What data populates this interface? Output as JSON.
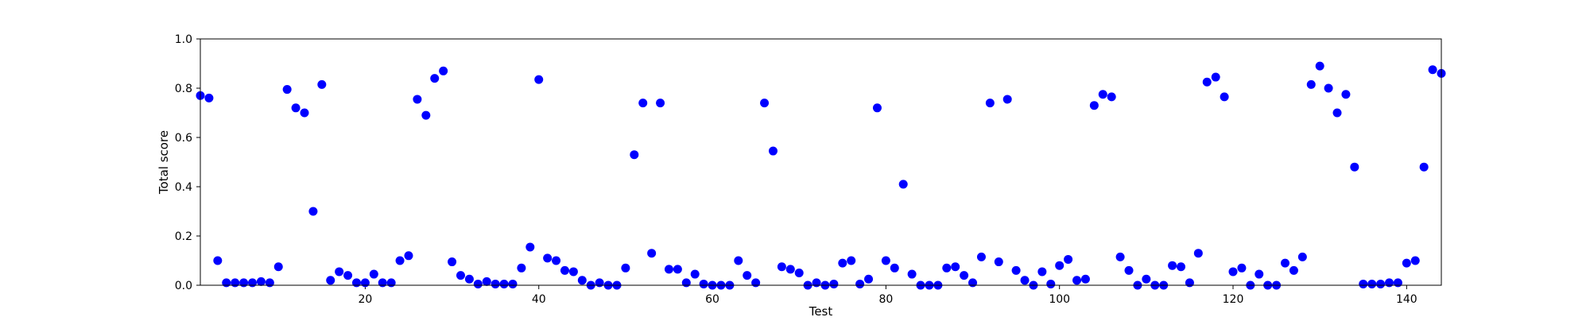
{
  "chart_data": {
    "type": "scatter",
    "xlabel": "Test",
    "ylabel": "Total score",
    "xlim": [
      1,
      144
    ],
    "ylim": [
      0,
      1
    ],
    "xticks": [
      20,
      40,
      60,
      80,
      100,
      120,
      140
    ],
    "yticks": [
      0.0,
      0.2,
      0.4,
      0.6,
      0.8,
      1.0
    ],
    "grid": false,
    "marker_color": "#0000ff",
    "x": [
      1,
      2,
      3,
      4,
      5,
      6,
      7,
      8,
      9,
      10,
      11,
      12,
      13,
      14,
      15,
      16,
      17,
      18,
      19,
      20,
      21,
      22,
      23,
      24,
      25,
      26,
      27,
      28,
      29,
      30,
      31,
      32,
      33,
      34,
      35,
      36,
      37,
      38,
      39,
      40,
      41,
      42,
      43,
      44,
      45,
      46,
      47,
      48,
      49,
      50,
      51,
      52,
      53,
      54,
      55,
      56,
      57,
      58,
      59,
      60,
      61,
      62,
      63,
      64,
      65,
      66,
      67,
      68,
      69,
      70,
      71,
      72,
      73,
      74,
      75,
      76,
      77,
      78,
      79,
      80,
      81,
      82,
      83,
      84,
      85,
      86,
      87,
      88,
      89,
      90,
      91,
      92,
      93,
      94,
      95,
      96,
      97,
      98,
      99,
      100,
      101,
      102,
      103,
      104,
      105,
      106,
      107,
      108,
      109,
      110,
      111,
      112,
      113,
      114,
      115,
      116,
      117,
      118,
      119,
      120,
      121,
      122,
      123,
      124,
      125,
      126,
      127,
      128,
      129,
      130,
      131,
      132,
      133,
      134,
      135,
      136,
      137,
      138,
      139,
      140,
      141,
      142,
      143,
      144
    ],
    "y": [
      0.77,
      0.76,
      0.1,
      0.01,
      0.01,
      0.01,
      0.01,
      0.015,
      0.01,
      0.075,
      0.795,
      0.72,
      0.7,
      0.3,
      0.815,
      0.02,
      0.055,
      0.04,
      0.01,
      0.01,
      0.045,
      0.01,
      0.01,
      0.1,
      0.12,
      0.755,
      0.69,
      0.84,
      0.87,
      0.095,
      0.04,
      0.025,
      0.005,
      0.015,
      0.005,
      0.005,
      0.005,
      0.07,
      0.155,
      0.835,
      0.11,
      0.1,
      0.06,
      0.055,
      0.02,
      0.0,
      0.01,
      0.0,
      0.0,
      0.07,
      0.53,
      0.74,
      0.13,
      0.74,
      0.065,
      0.065,
      0.01,
      0.045,
      0.005,
      0.0,
      0.0,
      0.0,
      0.1,
      0.04,
      0.01,
      0.74,
      0.545,
      0.075,
      0.065,
      0.05,
      0.0,
      0.01,
      0.0,
      0.005,
      0.09,
      0.1,
      0.005,
      0.025,
      0.72,
      0.1,
      0.07,
      0.41,
      0.045,
      0.0,
      0.0,
      0.0,
      0.07,
      0.075,
      0.04,
      0.01,
      0.115,
      0.74,
      0.095,
      0.755,
      0.06,
      0.02,
      0.0,
      0.055,
      0.005,
      0.08,
      0.105,
      0.02,
      0.025,
      0.73,
      0.775,
      0.765,
      0.115,
      0.06,
      0.0,
      0.025,
      0.0,
      0.0,
      0.08,
      0.075,
      0.01,
      0.13,
      0.825,
      0.845,
      0.765,
      0.055,
      0.07,
      0.0,
      0.045,
      0.0,
      0.0,
      0.09,
      0.06,
      0.115,
      0.815,
      0.89,
      0.8,
      0.7,
      0.775,
      0.48,
      0.005,
      0.005,
      0.005,
      0.01,
      0.01,
      0.09,
      0.1,
      0.48,
      0.875,
      0.86
    ]
  }
}
